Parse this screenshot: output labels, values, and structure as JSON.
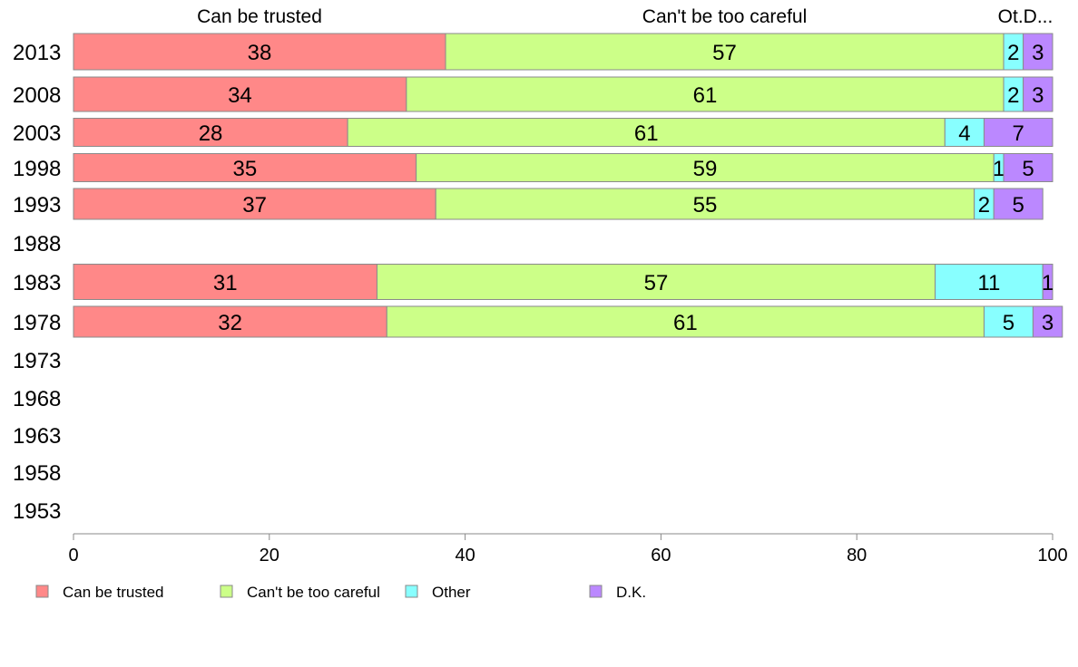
{
  "chart_data": {
    "type": "bar",
    "orientation": "horizontal",
    "stacked": true,
    "categories": [
      "2013",
      "2008",
      "2003",
      "1998",
      "1993",
      "1988",
      "1983",
      "1978",
      "1973",
      "1968",
      "1963",
      "1958",
      "1953"
    ],
    "series": [
      {
        "name": "Can be trusted",
        "color": "#ff8888",
        "values": [
          38,
          34,
          28,
          35,
          37,
          null,
          31,
          32,
          null,
          null,
          null,
          null,
          null
        ]
      },
      {
        "name": "Can't be too careful",
        "color": "#ccff88",
        "values": [
          57,
          61,
          61,
          59,
          55,
          null,
          57,
          61,
          null,
          null,
          null,
          null,
          null
        ]
      },
      {
        "name": "Other",
        "color": "#88ffff",
        "values": [
          2,
          2,
          4,
          1,
          2,
          null,
          11,
          5,
          null,
          null,
          null,
          null,
          null
        ]
      },
      {
        "name": "D.K.",
        "color": "#bb88ff",
        "values": [
          3,
          3,
          7,
          5,
          5,
          null,
          1,
          3,
          null,
          null,
          null,
          null,
          null
        ]
      }
    ],
    "column_headers": [
      "Can be trusted",
      "Can't be too careful",
      "Ot.D..."
    ],
    "xlim": [
      0,
      100
    ],
    "xticks": [
      0,
      20,
      40,
      60,
      80,
      100
    ],
    "grid": false,
    "legend_position": "bottom"
  }
}
